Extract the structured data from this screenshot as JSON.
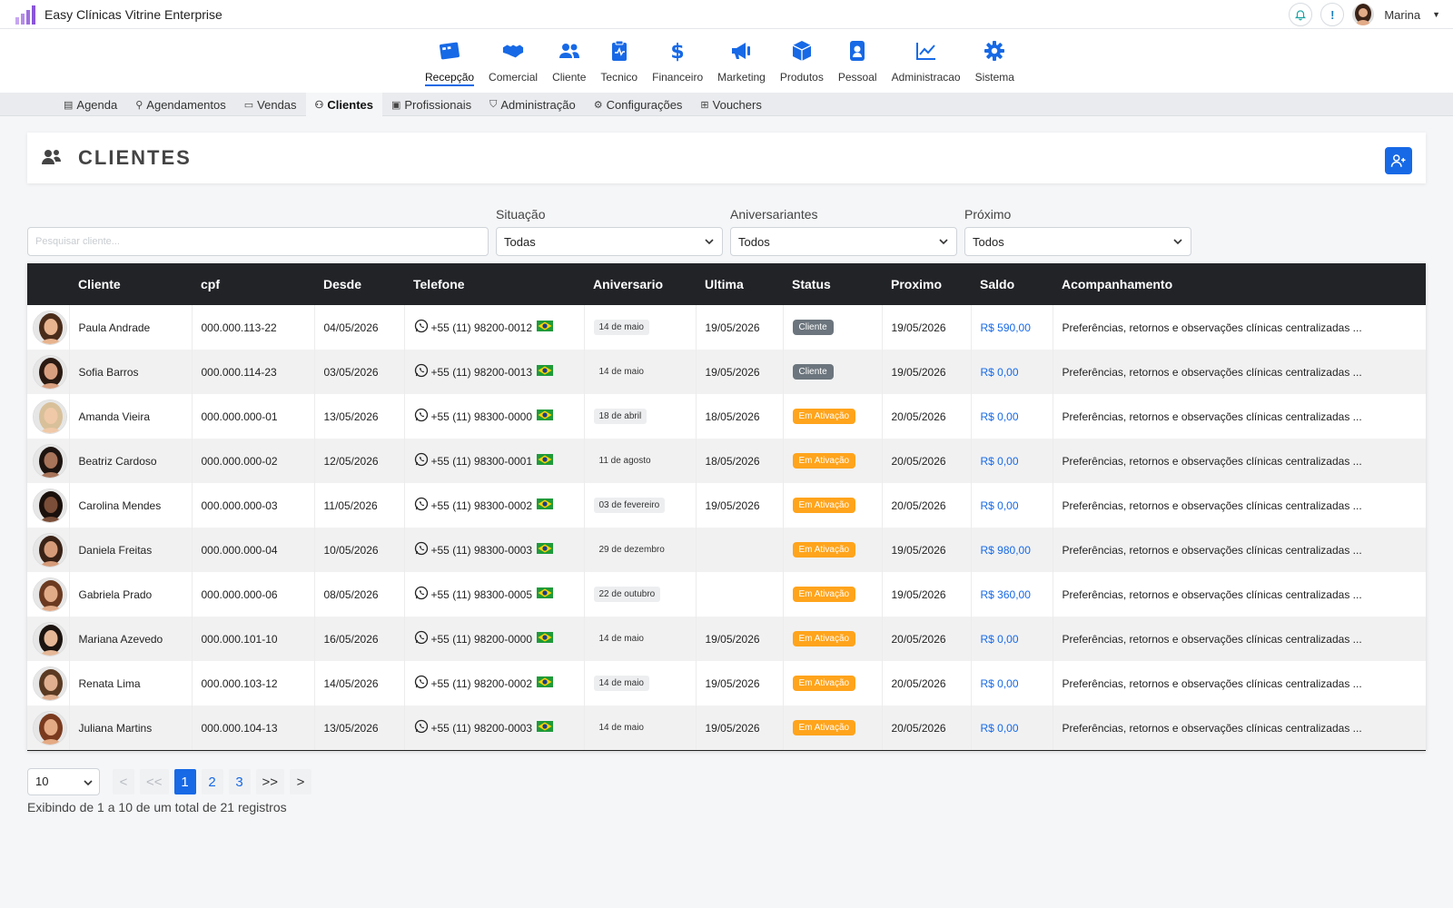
{
  "app": {
    "title": "Easy Clínicas Vitrine Enterprise"
  },
  "user": {
    "name": "Marina"
  },
  "modules": [
    {
      "label": "Recepção",
      "icon": "reception-icon"
    },
    {
      "label": "Comercial",
      "icon": "handshake-icon"
    },
    {
      "label": "Cliente",
      "icon": "users-icon"
    },
    {
      "label": "Tecnico",
      "icon": "clipboard-icon"
    },
    {
      "label": "Financeiro",
      "icon": "dollar-icon"
    },
    {
      "label": "Marketing",
      "icon": "megaphone-icon"
    },
    {
      "label": "Produtos",
      "icon": "box-icon"
    },
    {
      "label": "Pessoal",
      "icon": "id-badge-icon"
    },
    {
      "label": "Administracao",
      "icon": "chart-line-icon"
    },
    {
      "label": "Sistema",
      "icon": "gear-icon"
    }
  ],
  "subnav": [
    {
      "label": "Agenda",
      "glyph": "▤"
    },
    {
      "label": "Agendamentos",
      "glyph": "⚲"
    },
    {
      "label": "Vendas",
      "glyph": "▭"
    },
    {
      "label": "Clientes",
      "glyph": "⚇"
    },
    {
      "label": "Profissionais",
      "glyph": "▣"
    },
    {
      "label": "Administração",
      "glyph": "⛉"
    },
    {
      "label": "Configurações",
      "glyph": "⚙"
    },
    {
      "label": "Vouchers",
      "glyph": "⊞"
    }
  ],
  "page": {
    "title": "CLIENTES"
  },
  "filters": {
    "search_placeholder": "Pesquisar cliente...",
    "situacao_label": "Situação",
    "situacao_value": "Todas",
    "aniversariantes_label": "Aniversariantes",
    "aniversariantes_value": "Todos",
    "proximo_label": "Próximo",
    "proximo_value": "Todos"
  },
  "table": {
    "headers": [
      "Cliente",
      "cpf",
      "Desde",
      "Telefone",
      "Aniversario",
      "Ultima",
      "Status",
      "Proximo",
      "Saldo",
      "Acompanhamento"
    ],
    "rows": [
      {
        "name": "Paula Andrade",
        "cpf": "000.000.113-22",
        "desde": "04/05/2026",
        "phone": "+55 (11) 98200-0012",
        "aniv": "14 de maio",
        "aniv_pill": true,
        "ultima": "19/05/2026",
        "status": "Cliente",
        "proximo": "19/05/2026",
        "saldo": "R$ 590,00",
        "acomp": "Preferências, retornos e observações clínicas centralizadas ...",
        "skin": "#e8b48f",
        "hair": "#4a2c1a"
      },
      {
        "name": "Sofia Barros",
        "cpf": "000.000.114-23",
        "desde": "03/05/2026",
        "phone": "+55 (11) 98200-0013",
        "aniv": "14 de maio",
        "aniv_pill": false,
        "ultima": "19/05/2026",
        "status": "Cliente",
        "proximo": "19/05/2026",
        "saldo": "R$ 0,00",
        "acomp": "Preferências, retornos e observações clínicas centralizadas ...",
        "skin": "#d9a080",
        "hair": "#2a1a12"
      },
      {
        "name": "Amanda Vieira",
        "cpf": "000.000.000-01",
        "desde": "13/05/2026",
        "phone": "+55 (11) 98300-0000",
        "aniv": "18 de abril",
        "aniv_pill": true,
        "ultima": "18/05/2026",
        "status": "Em Ativação",
        "proximo": "20/05/2026",
        "saldo": "R$ 0,00",
        "acomp": "Preferências, retornos e observações clínicas centralizadas ...",
        "skin": "#f0c9a8",
        "hair": "#d8c09a"
      },
      {
        "name": "Beatriz Cardoso",
        "cpf": "000.000.000-02",
        "desde": "12/05/2026",
        "phone": "+55 (11) 98300-0001",
        "aniv": "11 de agosto",
        "aniv_pill": false,
        "ultima": "18/05/2026",
        "status": "Em Ativação",
        "proximo": "20/05/2026",
        "saldo": "R$ 0,00",
        "acomp": "Preferências, retornos e observações clínicas centralizadas ...",
        "skin": "#a8745a",
        "hair": "#1e1410"
      },
      {
        "name": "Carolina Mendes",
        "cpf": "000.000.000-03",
        "desde": "11/05/2026",
        "phone": "+55 (11) 98300-0002",
        "aniv": "03 de fevereiro",
        "aniv_pill": true,
        "ultima": "19/05/2026",
        "status": "Em Ativação",
        "proximo": "20/05/2026",
        "saldo": "R$ 0,00",
        "acomp": "Preferências, retornos e observações clínicas centralizadas ...",
        "skin": "#7a4e38",
        "hair": "#1a100c"
      },
      {
        "name": "Daniela Freitas",
        "cpf": "000.000.000-04",
        "desde": "10/05/2026",
        "phone": "+55 (11) 98300-0003",
        "aniv": "29 de dezembro",
        "aniv_pill": false,
        "ultima": "",
        "status": "Em Ativação",
        "proximo": "19/05/2026",
        "saldo": "R$ 980,00",
        "acomp": "Preferências, retornos e observações clínicas centralizadas ...",
        "skin": "#d69c7a",
        "hair": "#3a2216"
      },
      {
        "name": "Gabriela Prado",
        "cpf": "000.000.000-06",
        "desde": "08/05/2026",
        "phone": "+55 (11) 98300-0005",
        "aniv": "22 de outubro",
        "aniv_pill": true,
        "ultima": "",
        "status": "Em Ativação",
        "proximo": "19/05/2026",
        "saldo": "R$ 360,00",
        "acomp": "Preferências, retornos e observações clínicas centralizadas ...",
        "skin": "#e2ab88",
        "hair": "#6b3a20"
      },
      {
        "name": "Mariana Azevedo",
        "cpf": "000.000.101-10",
        "desde": "16/05/2026",
        "phone": "+55 (11) 98200-0000",
        "aniv": "14 de maio",
        "aniv_pill": false,
        "ultima": "19/05/2026",
        "status": "Em Ativação",
        "proximo": "20/05/2026",
        "saldo": "R$ 0,00",
        "acomp": "Preferências, retornos e observações clínicas centralizadas ...",
        "skin": "#e6b898",
        "hair": "#1c1410"
      },
      {
        "name": "Renata Lima",
        "cpf": "000.000.103-12",
        "desde": "14/05/2026",
        "phone": "+55 (11) 98200-0002",
        "aniv": "14 de maio",
        "aniv_pill": true,
        "ultima": "19/05/2026",
        "status": "Em Ativação",
        "proximo": "20/05/2026",
        "saldo": "R$ 0,00",
        "acomp": "Preferências, retornos e observações clínicas centralizadas ...",
        "skin": "#e0b090",
        "hair": "#5a3a22"
      },
      {
        "name": "Juliana Martins",
        "cpf": "000.000.104-13",
        "desde": "13/05/2026",
        "phone": "+55 (11) 98200-0003",
        "aniv": "14 de maio",
        "aniv_pill": false,
        "ultima": "19/05/2026",
        "status": "Em Ativação",
        "proximo": "20/05/2026",
        "saldo": "R$ 0,00",
        "acomp": "Preferências, retornos e observações clínicas centralizadas ...",
        "skin": "#e4aa84",
        "hair": "#7a3a1e"
      }
    ]
  },
  "pagination": {
    "page_size": "10",
    "prev": "<",
    "first": "<<",
    "pages": [
      "1",
      "2",
      "3"
    ],
    "current": "1",
    "last": ">>",
    "next": ">",
    "info": "Exibindo de 1 a 10 de um total de 21 registros"
  },
  "colors": {
    "accent": "#1769e6",
    "header_dark": "#212327",
    "status_cliente": "#6c757d",
    "status_ativacao": "#ffa41c"
  }
}
